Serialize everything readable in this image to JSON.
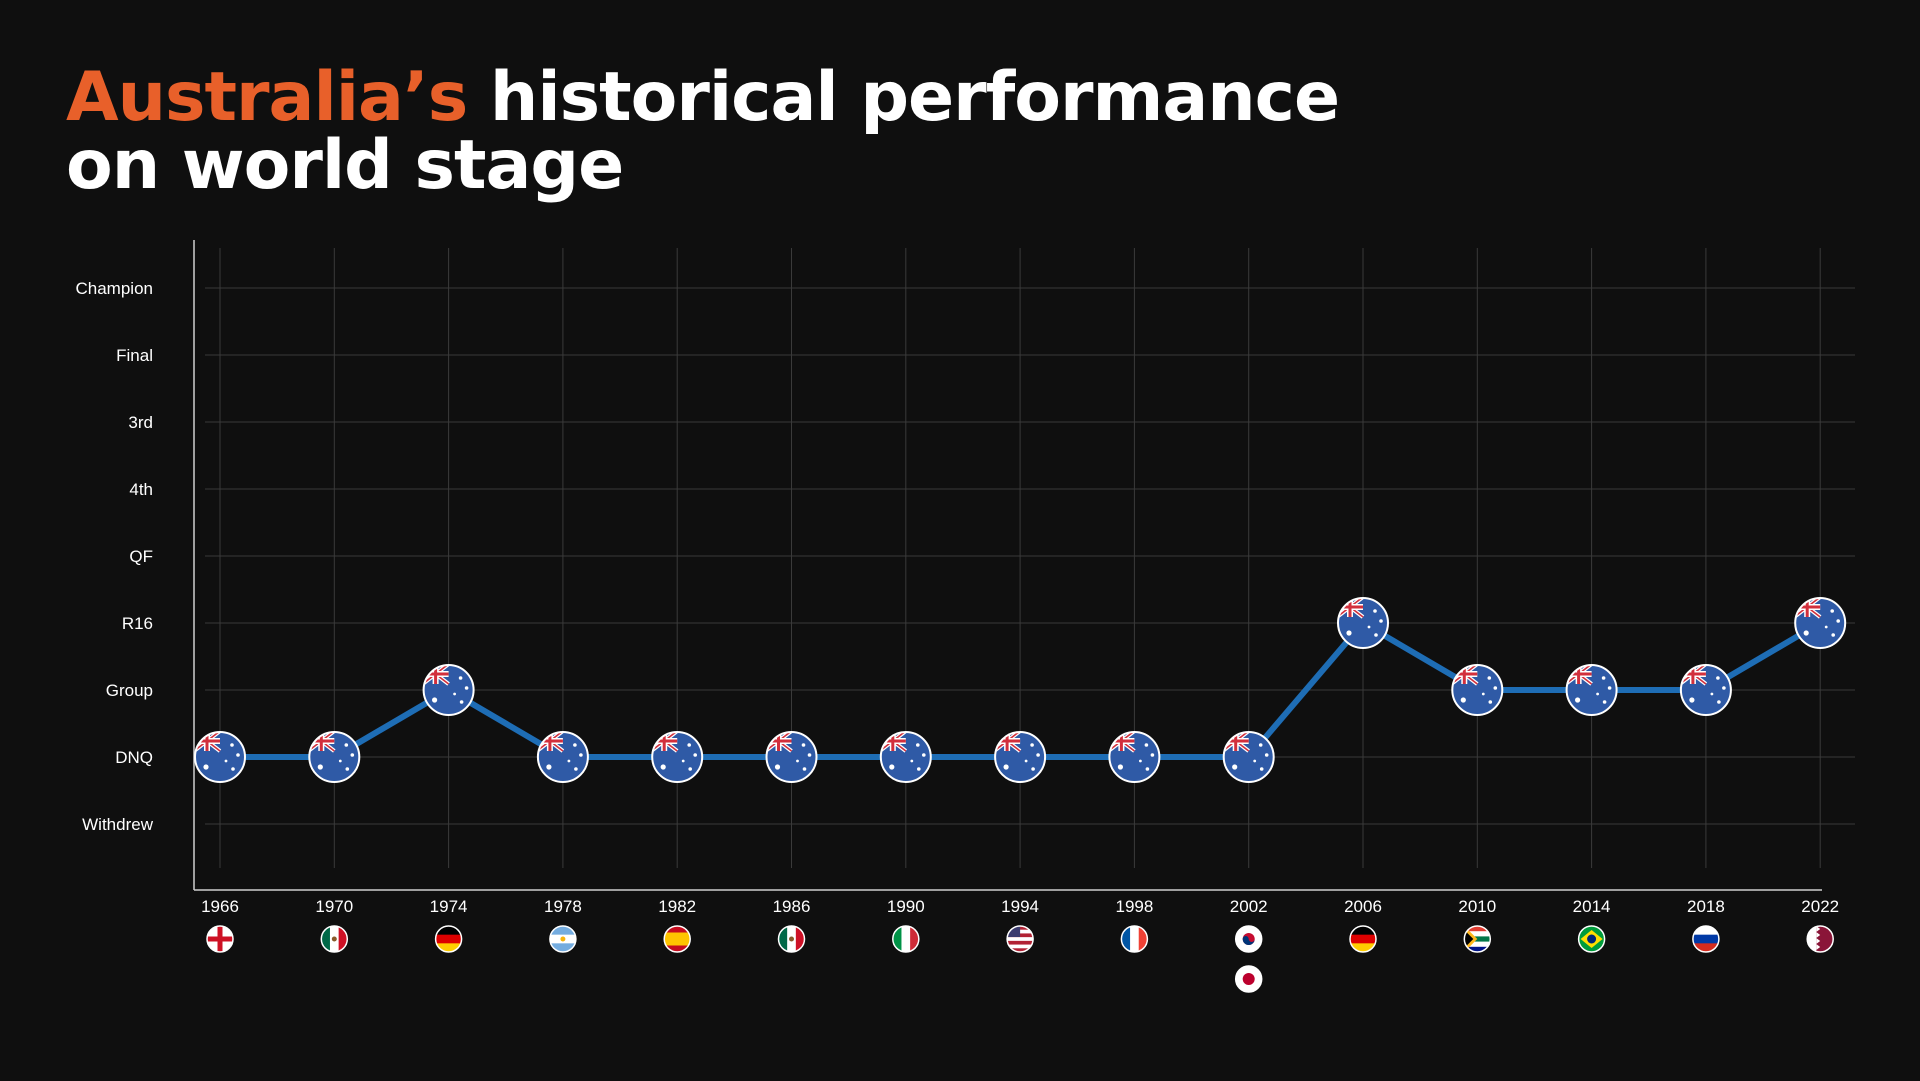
{
  "title": {
    "highlight": "Australia’s",
    "line1_rest": " historical performance",
    "line2": "on world stage"
  },
  "colors": {
    "background": "#0f0f0f",
    "accent": "#e8602a",
    "line": "#1e6db5",
    "grid": "#3a3a3a",
    "text": "#ffffff"
  },
  "chart_data": {
    "type": "line",
    "title": "Australia’s historical performance on world stage",
    "y_categories": [
      "Withdrew",
      "DNQ",
      "Group",
      "R16",
      "QF",
      "4th",
      "3rd",
      "Final",
      "Champion"
    ],
    "grid": true,
    "series": [
      {
        "marker": "australia-flag",
        "x": [
          "1966",
          "1970",
          "1974",
          "1978",
          "1982",
          "1986",
          "1990",
          "1994",
          "1998",
          "2002",
          "2006",
          "2010",
          "2014",
          "2018",
          "2022"
        ],
        "values": [
          "DNQ",
          "DNQ",
          "Group",
          "DNQ",
          "DNQ",
          "DNQ",
          "DNQ",
          "DNQ",
          "DNQ",
          "DNQ",
          "R16",
          "Group",
          "Group",
          "Group",
          "R16"
        ]
      }
    ],
    "hosts": [
      {
        "year": "1966",
        "flags": [
          "england"
        ]
      },
      {
        "year": "1970",
        "flags": [
          "mexico"
        ]
      },
      {
        "year": "1974",
        "flags": [
          "germany"
        ]
      },
      {
        "year": "1978",
        "flags": [
          "argentina"
        ]
      },
      {
        "year": "1982",
        "flags": [
          "spain"
        ]
      },
      {
        "year": "1986",
        "flags": [
          "mexico"
        ]
      },
      {
        "year": "1990",
        "flags": [
          "italy"
        ]
      },
      {
        "year": "1994",
        "flags": [
          "usa"
        ]
      },
      {
        "year": "1998",
        "flags": [
          "france"
        ]
      },
      {
        "year": "2002",
        "flags": [
          "south-korea",
          "japan"
        ]
      },
      {
        "year": "2006",
        "flags": [
          "germany"
        ]
      },
      {
        "year": "2010",
        "flags": [
          "south-africa"
        ]
      },
      {
        "year": "2014",
        "flags": [
          "brazil"
        ]
      },
      {
        "year": "2018",
        "flags": [
          "russia"
        ]
      },
      {
        "year": "2022",
        "flags": [
          "qatar"
        ]
      }
    ]
  }
}
